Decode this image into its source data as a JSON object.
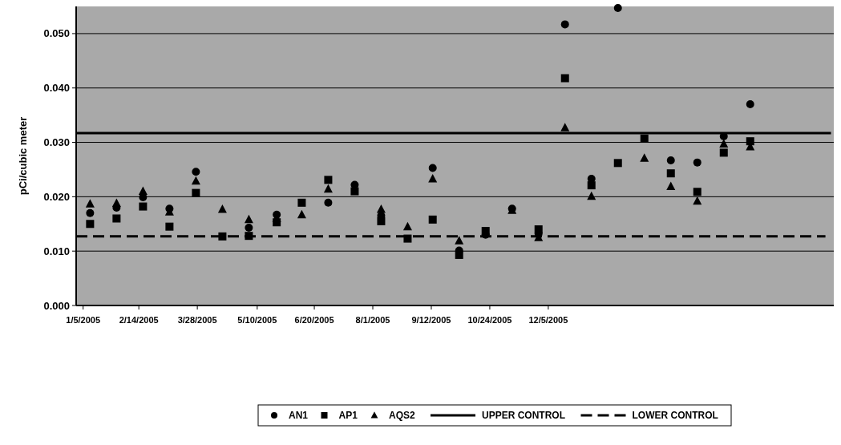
{
  "chart_data": {
    "type": "scatter",
    "ylabel": "pCi/cubic meter",
    "xlim": [
      "2004-12-31",
      "2006-06-28"
    ],
    "xticks": [
      {
        "value": "2005-01-05",
        "label": "1/5/2005"
      },
      {
        "value": "2005-02-14",
        "label": "2/14/2005"
      },
      {
        "value": "2005-03-28",
        "label": "3/28/2005"
      },
      {
        "value": "2005-05-10",
        "label": "5/10/2005"
      },
      {
        "value": "2005-06-20",
        "label": "6/20/2005"
      },
      {
        "value": "2005-08-01",
        "label": "8/1/2005"
      },
      {
        "value": "2005-09-12",
        "label": "9/12/2005"
      },
      {
        "value": "2005-10-24",
        "label": "10/24/2005"
      },
      {
        "value": "2005-12-05",
        "label": "12/5/2005"
      }
    ],
    "ylim": [
      0,
      0.055
    ],
    "yticks": [
      {
        "value": 0,
        "label": "0.000"
      },
      {
        "value": 0.01,
        "label": "0.010"
      },
      {
        "value": 0.02,
        "label": "0.020"
      },
      {
        "value": 0.03,
        "label": "0.030"
      },
      {
        "value": 0.04,
        "label": "0.040"
      },
      {
        "value": 0.05,
        "label": "0.050"
      }
    ],
    "grid": "y",
    "legend": "bottom",
    "x": [
      "2005-01-10",
      "2005-01-29",
      "2005-02-17",
      "2005-03-08",
      "2005-03-27",
      "2005-04-15",
      "2005-05-04",
      "2005-05-24",
      "2005-06-11",
      "2005-06-30",
      "2005-07-19",
      "2005-08-07",
      "2005-08-26",
      "2005-09-13",
      "2005-10-02",
      "2005-10-21",
      "2005-11-09",
      "2005-11-28",
      "2005-12-17",
      "2006-01-05",
      "2006-01-24",
      "2006-02-12",
      "2006-03-03",
      "2006-03-22",
      "2006-04-10",
      "2006-04-29"
    ],
    "series": [
      {
        "name": "AN1",
        "color": "#000000",
        "marker": "circle",
        "values": [
          0.017,
          0.018,
          0.0199,
          0.0178,
          0.0246,
          null,
          0.0143,
          0.0167,
          null,
          0.0189,
          0.0222,
          0.0165,
          null,
          0.0253,
          0.0101,
          0.013,
          0.0178,
          0.0132,
          0.0517,
          0.0233,
          0.0547,
          null,
          0.0267,
          0.0263,
          0.0311,
          0.037
        ]
      },
      {
        "name": "AP1",
        "color": "#000000",
        "marker": "square",
        "values": [
          0.015,
          0.016,
          0.0182,
          0.0145,
          0.0207,
          0.0127,
          0.0128,
          0.0153,
          0.0189,
          0.0231,
          0.021,
          0.0155,
          0.0123,
          0.0158,
          0.0093,
          0.0137,
          null,
          0.014,
          0.0418,
          0.0221,
          0.0262,
          0.0307,
          0.0243,
          0.0209,
          0.0281,
          0.0302
        ]
      },
      {
        "name": "AQS2",
        "color": "#000000",
        "marker": "triangle",
        "values": [
          0.0187,
          0.0188,
          0.021,
          0.0172,
          0.0229,
          0.0177,
          0.0158,
          0.016,
          0.0167,
          0.0214,
          null,
          0.0177,
          0.0145,
          0.0233,
          0.0119,
          null,
          0.0175,
          0.0125,
          0.0327,
          0.0201,
          null,
          0.0271,
          0.0219,
          0.0192,
          0.0297,
          0.0292
        ]
      },
      {
        "name": "UPPER CONTROL",
        "type": "line",
        "color": "#000000",
        "line_style": "solid",
        "marker": "none",
        "x": [
          "2004-12-31",
          "2006-06-26"
        ],
        "values": [
          0.0317,
          0.0317
        ]
      },
      {
        "name": "LOWER CONTROL",
        "type": "line",
        "color": "#000000",
        "line_style": "dashed",
        "marker": "none",
        "x": [
          "2004-12-31",
          "2006-06-22"
        ],
        "values": [
          0.0127,
          0.0127
        ]
      }
    ]
  }
}
